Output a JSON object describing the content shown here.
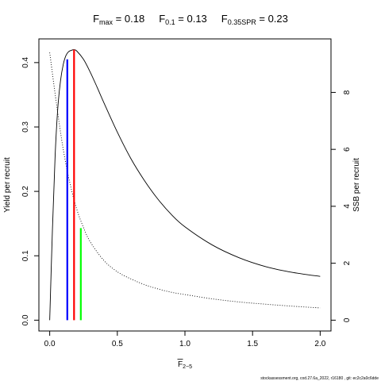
{
  "title": {
    "fmax_base": "F",
    "fmax_sub": "max",
    "fmax_val": " = 0.18",
    "f01_base": "F",
    "f01_sub": "0.1",
    "f01_val": " = 0.13",
    "fspr_base": "F",
    "fspr_sub": "0.35SPR",
    "fspr_val": " = 0.23"
  },
  "footer": "stockassessment.org,  cod.27.6a_2022,  r16180 ,  git:  ec2c2a0c6dde",
  "chart_data": {
    "type": "line",
    "xlabel_base": "F",
    "xlabel_sub": "2−5",
    "ylabel_left": "Yield per recruit",
    "ylabel_right": "SSB per recruit",
    "xlim": [
      -0.08,
      2.08
    ],
    "ylim_left": [
      -0.0168,
      0.4368
    ],
    "ylim_right": [
      -0.38,
      9.88
    ],
    "x_ticks": [
      0,
      0.5,
      1,
      1.5,
      2
    ],
    "x_tick_labels": [
      "0.0",
      "0.5",
      "1.0",
      "1.5",
      "2.0"
    ],
    "y_left_ticks": [
      0,
      0.1,
      0.2,
      0.3,
      0.4
    ],
    "y_left_tick_labels": [
      "0.0",
      "0.1",
      "0.2",
      "0.3",
      "0.4"
    ],
    "y_right_ticks": [
      0,
      2,
      4,
      6,
      8
    ],
    "y_right_tick_labels": [
      "0",
      "2",
      "4",
      "6",
      "8"
    ],
    "series": [
      {
        "axis": "left",
        "style": "solid",
        "color": "#000000",
        "x": [
          0,
          0.02,
          0.04,
          0.06,
          0.08,
          0.1,
          0.12,
          0.14,
          0.16,
          0.18,
          0.2,
          0.25,
          0.3,
          0.35,
          0.4,
          0.5,
          0.6,
          0.7,
          0.8,
          0.9,
          1.0,
          1.2,
          1.4,
          1.6,
          1.8,
          2.0
        ],
        "values": [
          0,
          0.14,
          0.255,
          0.33,
          0.372,
          0.397,
          0.411,
          0.417,
          0.419,
          0.42,
          0.418,
          0.405,
          0.385,
          0.362,
          0.338,
          0.292,
          0.251,
          0.217,
          0.188,
          0.164,
          0.145,
          0.117,
          0.097,
          0.083,
          0.074,
          0.068
        ]
      },
      {
        "axis": "right",
        "style": "dotted",
        "color": "#000000",
        "x": [
          0,
          0.05,
          0.1,
          0.15,
          0.2,
          0.25,
          0.3,
          0.4,
          0.5,
          0.6,
          0.7,
          0.8,
          0.9,
          1.0,
          1.2,
          1.4,
          1.6,
          1.8,
          2.0
        ],
        "values": [
          9.4,
          7.6,
          6.0,
          4.8,
          3.9,
          3.25,
          2.75,
          2.1,
          1.7,
          1.45,
          1.25,
          1.1,
          0.98,
          0.9,
          0.75,
          0.64,
          0.56,
          0.49,
          0.43
        ]
      }
    ],
    "reference_lines": [
      {
        "x": 0.13,
        "y_top": 0.405,
        "color": "#0000ff"
      },
      {
        "x": 0.18,
        "y_top": 0.42,
        "color": "#ff0000"
      },
      {
        "x": 0.23,
        "y_top": 0.143,
        "color": "#00ff00"
      }
    ]
  }
}
